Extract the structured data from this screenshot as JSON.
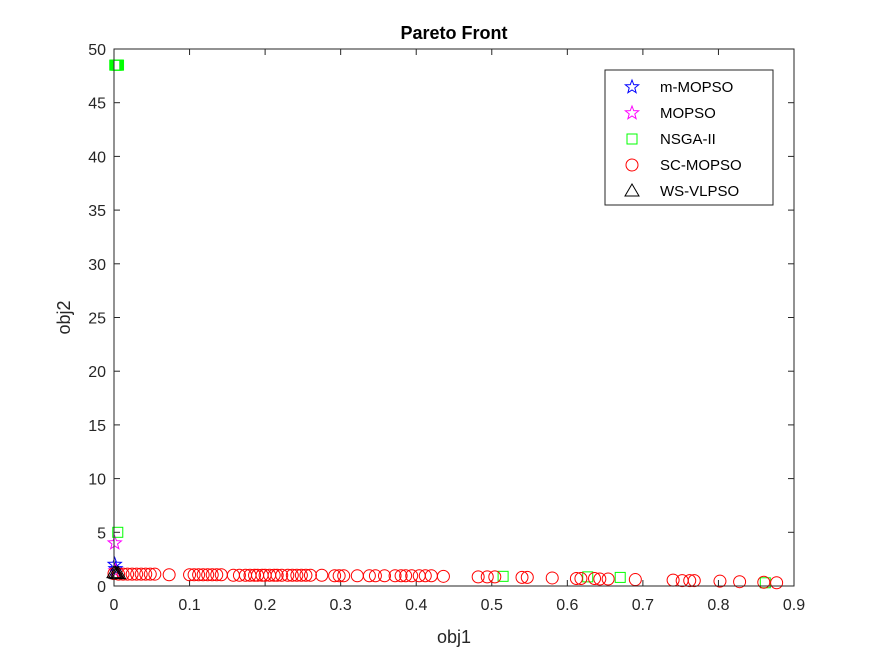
{
  "chart_data": {
    "type": "scatter",
    "title": "Pareto Front",
    "xlabel": "obj1",
    "ylabel": "obj2",
    "xlim": [
      0,
      0.9
    ],
    "ylim": [
      0,
      50
    ],
    "xticks": [
      "0",
      "0.1",
      "0.2",
      "0.3",
      "0.4",
      "0.5",
      "0.6",
      "0.7",
      "0.8",
      "0.9"
    ],
    "yticks": [
      "0",
      "5",
      "10",
      "15",
      "20",
      "25",
      "30",
      "35",
      "40",
      "45",
      "50"
    ],
    "grid": false,
    "legend_position": "top-right",
    "series": [
      {
        "name": "m-MOPSO",
        "marker": "pentagram",
        "color": "#0000ff",
        "points": [
          [
            0.001,
            2.0
          ],
          [
            0.002,
            1.6
          ]
        ]
      },
      {
        "name": "MOPSO",
        "marker": "pentagram",
        "color": "#ff00ff",
        "points": [
          [
            0.001,
            4.0
          ],
          [
            0.002,
            1.4
          ]
        ]
      },
      {
        "name": "NSGA-II",
        "marker": "square",
        "color": "#00ff00",
        "points": [
          [
            0.001,
            48.5
          ],
          [
            0.002,
            48.5
          ],
          [
            0.003,
            48.5
          ],
          [
            0.004,
            48.5
          ],
          [
            0.005,
            48.5
          ],
          [
            0.006,
            48.5
          ],
          [
            0.005,
            5.0
          ],
          [
            0.515,
            0.9
          ],
          [
            0.627,
            0.85
          ],
          [
            0.67,
            0.8
          ],
          [
            0.862,
            0.3
          ]
        ]
      },
      {
        "name": "SC-MOPSO",
        "marker": "circle",
        "color": "#ff0000",
        "points": [
          [
            0.0,
            1.15
          ],
          [
            0.006,
            1.1
          ],
          [
            0.012,
            1.1
          ],
          [
            0.018,
            1.1
          ],
          [
            0.024,
            1.1
          ],
          [
            0.03,
            1.1
          ],
          [
            0.036,
            1.1
          ],
          [
            0.042,
            1.1
          ],
          [
            0.048,
            1.1
          ],
          [
            0.054,
            1.1
          ],
          [
            0.073,
            1.05
          ],
          [
            0.1,
            1.05
          ],
          [
            0.106,
            1.05
          ],
          [
            0.112,
            1.05
          ],
          [
            0.118,
            1.05
          ],
          [
            0.124,
            1.05
          ],
          [
            0.13,
            1.05
          ],
          [
            0.136,
            1.05
          ],
          [
            0.142,
            1.05
          ],
          [
            0.158,
            1.0
          ],
          [
            0.166,
            1.0
          ],
          [
            0.174,
            1.0
          ],
          [
            0.18,
            1.0
          ],
          [
            0.186,
            1.0
          ],
          [
            0.19,
            1.0
          ],
          [
            0.196,
            1.0
          ],
          [
            0.2,
            1.0
          ],
          [
            0.206,
            1.0
          ],
          [
            0.212,
            1.0
          ],
          [
            0.216,
            1.0
          ],
          [
            0.222,
            1.0
          ],
          [
            0.23,
            1.0
          ],
          [
            0.236,
            1.0
          ],
          [
            0.242,
            1.0
          ],
          [
            0.248,
            1.0
          ],
          [
            0.254,
            1.0
          ],
          [
            0.26,
            1.0
          ],
          [
            0.275,
            1.0
          ],
          [
            0.292,
            0.95
          ],
          [
            0.298,
            0.95
          ],
          [
            0.304,
            0.95
          ],
          [
            0.322,
            0.95
          ],
          [
            0.338,
            0.95
          ],
          [
            0.346,
            0.95
          ],
          [
            0.358,
            0.95
          ],
          [
            0.372,
            0.95
          ],
          [
            0.38,
            0.95
          ],
          [
            0.386,
            0.95
          ],
          [
            0.394,
            0.95
          ],
          [
            0.404,
            0.95
          ],
          [
            0.412,
            0.95
          ],
          [
            0.42,
            0.95
          ],
          [
            0.436,
            0.9
          ],
          [
            0.482,
            0.85
          ],
          [
            0.494,
            0.85
          ],
          [
            0.504,
            0.85
          ],
          [
            0.54,
            0.8
          ],
          [
            0.547,
            0.8
          ],
          [
            0.58,
            0.75
          ],
          [
            0.612,
            0.7
          ],
          [
            0.618,
            0.7
          ],
          [
            0.636,
            0.7
          ],
          [
            0.643,
            0.65
          ],
          [
            0.654,
            0.65
          ],
          [
            0.69,
            0.6
          ],
          [
            0.74,
            0.55
          ],
          [
            0.752,
            0.5
          ],
          [
            0.762,
            0.5
          ],
          [
            0.768,
            0.5
          ],
          [
            0.802,
            0.45
          ],
          [
            0.828,
            0.4
          ],
          [
            0.86,
            0.35
          ],
          [
            0.877,
            0.3
          ]
        ]
      },
      {
        "name": "WS-VLPSO",
        "marker": "triangle",
        "color": "#000000",
        "points": [
          [
            0.0,
            1.25
          ],
          [
            0.002,
            1.2
          ],
          [
            0.004,
            1.15
          ],
          [
            0.006,
            1.15
          ]
        ]
      }
    ]
  }
}
